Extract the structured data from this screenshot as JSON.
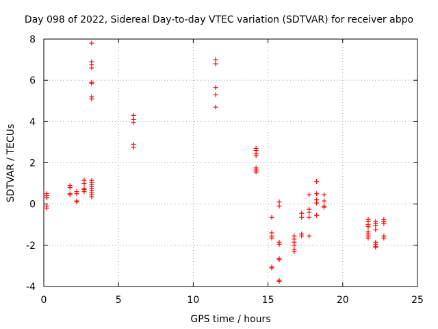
{
  "chart_data": {
    "type": "scatter",
    "title": "Day 098 of 2022, Sidereal Day-to-day VTEC variation (SDTVAR) for receiver abpo",
    "xlabel": "GPS time / hours",
    "ylabel": "SDTVAR / TECUs",
    "xlim": [
      0,
      25
    ],
    "ylim": [
      -4,
      8
    ],
    "xticks": [
      0,
      5,
      10,
      15,
      20,
      25
    ],
    "yticks": [
      -4,
      -2,
      0,
      2,
      4,
      6,
      8
    ],
    "xtick_labels": [
      "0",
      "5",
      "10",
      "15",
      "20",
      "25"
    ],
    "ytick_labels": [
      "-4",
      "-2",
      "0",
      "2",
      "4",
      "6",
      "8"
    ],
    "grid": true,
    "marker": "+",
    "color": "#ff0000",
    "series": [
      {
        "name": "SDTVAR",
        "points": [
          [
            0.2,
            0.5
          ],
          [
            0.2,
            0.4
          ],
          [
            0.2,
            0.3
          ],
          [
            0.2,
            -0.1
          ],
          [
            0.2,
            -0.2
          ],
          [
            1.75,
            0.9
          ],
          [
            1.75,
            0.8
          ],
          [
            1.75,
            0.5
          ],
          [
            1.75,
            0.45
          ],
          [
            2.2,
            0.6
          ],
          [
            2.2,
            0.5
          ],
          [
            2.2,
            0.15
          ],
          [
            2.2,
            0.1
          ],
          [
            2.7,
            1.15
          ],
          [
            2.7,
            1.0
          ],
          [
            2.7,
            0.75
          ],
          [
            2.7,
            0.7
          ],
          [
            2.7,
            0.6
          ],
          [
            3.2,
            7.8
          ],
          [
            3.2,
            6.9
          ],
          [
            3.2,
            6.75
          ],
          [
            3.2,
            6.6
          ],
          [
            3.2,
            5.9
          ],
          [
            3.2,
            5.85
          ],
          [
            3.2,
            5.2
          ],
          [
            3.2,
            5.1
          ],
          [
            3.2,
            1.15
          ],
          [
            3.2,
            1.05
          ],
          [
            3.2,
            0.95
          ],
          [
            3.2,
            0.85
          ],
          [
            3.2,
            0.75
          ],
          [
            3.2,
            0.65
          ],
          [
            3.2,
            0.55
          ],
          [
            3.2,
            0.45
          ],
          [
            3.2,
            0.35
          ],
          [
            6.0,
            4.3
          ],
          [
            6.0,
            4.1
          ],
          [
            6.0,
            3.95
          ],
          [
            6.0,
            2.9
          ],
          [
            6.0,
            2.75
          ],
          [
            11.5,
            7.0
          ],
          [
            11.5,
            6.8
          ],
          [
            11.5,
            5.65
          ],
          [
            11.5,
            5.3
          ],
          [
            11.5,
            4.7
          ],
          [
            14.2,
            2.7
          ],
          [
            14.2,
            2.6
          ],
          [
            14.2,
            2.45
          ],
          [
            14.2,
            2.35
          ],
          [
            14.2,
            1.75
          ],
          [
            14.2,
            1.65
          ],
          [
            14.2,
            1.55
          ],
          [
            15.25,
            -0.65
          ],
          [
            15.25,
            -1.4
          ],
          [
            15.25,
            -1.55
          ],
          [
            15.25,
            -1.65
          ],
          [
            15.25,
            -3.05
          ],
          [
            15.25,
            -3.1
          ],
          [
            15.75,
            0.1
          ],
          [
            15.75,
            -0.1
          ],
          [
            15.75,
            -1.85
          ],
          [
            15.75,
            -1.95
          ],
          [
            15.75,
            -2.65
          ],
          [
            15.75,
            -2.7
          ],
          [
            15.75,
            -3.7
          ],
          [
            15.75,
            -3.75
          ],
          [
            16.75,
            -1.55
          ],
          [
            16.75,
            -1.7
          ],
          [
            16.75,
            -1.85
          ],
          [
            16.75,
            -2.0
          ],
          [
            16.75,
            -2.2
          ],
          [
            16.75,
            -2.3
          ],
          [
            17.25,
            -0.45
          ],
          [
            17.25,
            -0.65
          ],
          [
            17.25,
            -1.45
          ],
          [
            17.25,
            -1.55
          ],
          [
            17.75,
            0.45
          ],
          [
            17.75,
            -0.25
          ],
          [
            17.75,
            -0.4
          ],
          [
            17.75,
            -0.65
          ],
          [
            17.75,
            -1.55
          ],
          [
            18.25,
            1.1
          ],
          [
            18.25,
            0.5
          ],
          [
            18.25,
            0.2
          ],
          [
            18.25,
            0.05
          ],
          [
            18.25,
            -0.55
          ],
          [
            18.75,
            0.45
          ],
          [
            18.75,
            0.15
          ],
          [
            18.75,
            -0.1
          ],
          [
            18.75,
            -0.15
          ],
          [
            21.7,
            -0.75
          ],
          [
            21.7,
            -0.85
          ],
          [
            21.7,
            -1.0
          ],
          [
            21.7,
            -1.1
          ],
          [
            21.7,
            -1.35
          ],
          [
            21.7,
            -1.45
          ],
          [
            21.7,
            -1.55
          ],
          [
            21.7,
            -1.65
          ],
          [
            22.2,
            -0.85
          ],
          [
            22.2,
            -0.95
          ],
          [
            22.2,
            -1.05
          ],
          [
            22.2,
            -1.25
          ],
          [
            22.2,
            -1.85
          ],
          [
            22.2,
            -1.95
          ],
          [
            22.2,
            -2.05
          ],
          [
            22.2,
            -2.1
          ],
          [
            22.75,
            -0.75
          ],
          [
            22.75,
            -0.85
          ],
          [
            22.75,
            -0.95
          ],
          [
            22.75,
            -1.55
          ],
          [
            22.75,
            -1.65
          ]
        ]
      }
    ]
  }
}
